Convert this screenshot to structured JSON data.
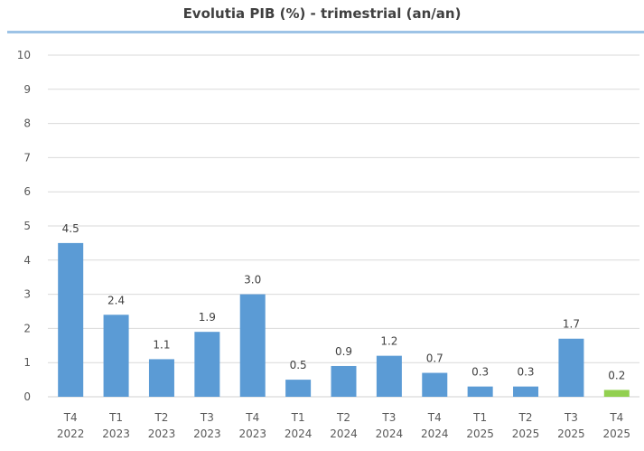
{
  "chart_data": {
    "type": "bar",
    "title": "Evolutia PIB (%) - trimestrial (an/an)",
    "categories": [
      [
        "T4",
        "2022"
      ],
      [
        "T1",
        "2023"
      ],
      [
        "T2",
        "2023"
      ],
      [
        "T3",
        "2023"
      ],
      [
        "T4",
        "2023"
      ],
      [
        "T1",
        "2024"
      ],
      [
        "T2",
        "2024"
      ],
      [
        "T3",
        "2024"
      ],
      [
        "T4",
        "2024"
      ],
      [
        "T1",
        "2025"
      ],
      [
        "T2",
        "2025"
      ],
      [
        "T3",
        "2025"
      ],
      [
        "T4",
        "2025"
      ]
    ],
    "values": [
      4.5,
      2.4,
      1.1,
      1.9,
      3.0,
      0.5,
      0.9,
      1.2,
      0.7,
      0.3,
      0.3,
      1.7,
      0.2
    ],
    "data_labels": [
      "4.5",
      "2.4",
      "1.1",
      "1.9",
      "3.0",
      "0.5",
      "0.9",
      "1.2",
      "0.7",
      "0.3",
      "0.3",
      "1.7",
      "0.2"
    ],
    "bar_colors": [
      "#5b9bd5",
      "#5b9bd5",
      "#5b9bd5",
      "#5b9bd5",
      "#5b9bd5",
      "#5b9bd5",
      "#5b9bd5",
      "#5b9bd5",
      "#5b9bd5",
      "#5b9bd5",
      "#5b9bd5",
      "#5b9bd5",
      "#92d050"
    ],
    "ylim": [
      0,
      10
    ],
    "yticks": [
      0,
      1,
      2,
      3,
      4,
      5,
      6,
      7,
      8,
      9,
      10
    ],
    "grid": true,
    "xlabel": "",
    "ylabel": ""
  }
}
